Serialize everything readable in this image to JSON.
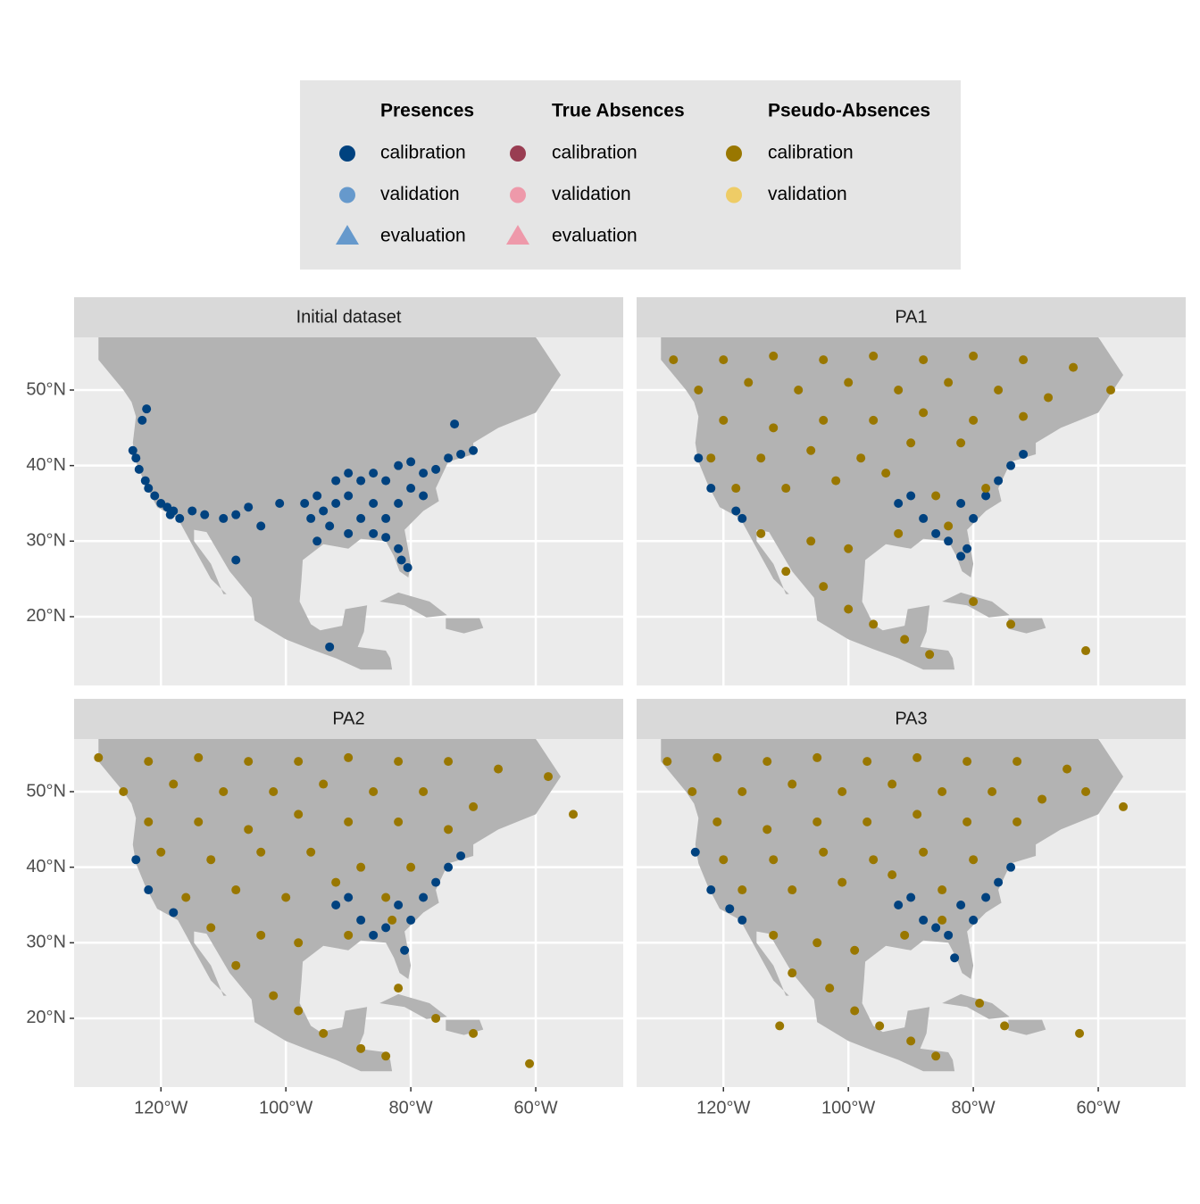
{
  "legend": {
    "groups": [
      {
        "title": "Presences",
        "items": [
          {
            "label": "calibration",
            "color": "#00427f",
            "shape": "circle"
          },
          {
            "label": "validation",
            "color": "#6699cc",
            "shape": "circle"
          },
          {
            "label": "evaluation",
            "color": "#6699cc",
            "shape": "triangle"
          }
        ]
      },
      {
        "title": "True Absences",
        "items": [
          {
            "label": "calibration",
            "color": "#993d52",
            "shape": "circle"
          },
          {
            "label": "validation",
            "color": "#ee99aa",
            "shape": "circle"
          },
          {
            "label": "evaluation",
            "color": "#ee99aa",
            "shape": "triangle"
          }
        ]
      },
      {
        "title": "Pseudo-Absences",
        "items": [
          {
            "label": "calibration",
            "color": "#997700",
            "shape": "circle"
          },
          {
            "label": "validation",
            "color": "#eecc66",
            "shape": "circle"
          }
        ]
      }
    ]
  },
  "axes": {
    "xlim": [
      -133.9,
      -46
    ],
    "ylim": [
      10.9,
      56.97
    ],
    "xticks": [
      {
        "value": -120,
        "label": "120°W"
      },
      {
        "value": -100,
        "label": "100°W"
      },
      {
        "value": -80,
        "label": "80°W"
      },
      {
        "value": -60,
        "label": "60°W"
      }
    ],
    "yticks": [
      {
        "value": 20,
        "label": "20°N"
      },
      {
        "value": 30,
        "label": "30°N"
      },
      {
        "value": 40,
        "label": "40°N"
      },
      {
        "value": 50,
        "label": "50°N"
      }
    ],
    "grid": true
  },
  "chart_data": [
    {
      "type": "scatter",
      "title": "Initial dataset",
      "series": [
        {
          "color": "#00427f",
          "x": [
            -124.5,
            -124,
            -123.5,
            -122.5,
            -122,
            -121,
            -120,
            -119,
            -118,
            -117,
            -122.3,
            -123,
            -118.5,
            -115,
            -113,
            -110,
            -108,
            -106,
            -104,
            -101,
            -97,
            -95,
            -95,
            -93,
            -92,
            -90,
            -88,
            -86,
            -84,
            -82,
            -80,
            -78,
            -76,
            -74,
            -72,
            -70,
            -90,
            -88,
            -86,
            -84,
            -82,
            -81.5,
            -80.5,
            -86,
            -84,
            -82,
            -80,
            -78,
            -90,
            -92,
            -94,
            -96,
            -73,
            -108,
            -93
          ],
          "values": [
            42,
            41,
            39.5,
            38,
            37,
            36,
            35,
            34.5,
            34,
            33,
            47.5,
            46,
            33.5,
            34,
            33.5,
            33,
            33.5,
            34.5,
            32,
            35,
            35,
            36,
            30,
            32,
            35,
            36,
            38,
            35,
            33,
            35,
            37,
            39,
            39.5,
            41,
            41.5,
            42,
            31,
            33,
            31,
            30.5,
            29,
            27.5,
            26.5,
            39,
            38,
            40,
            40.5,
            36,
            39,
            38,
            34,
            33,
            45.5,
            27.5,
            16
          ]
        }
      ]
    },
    {
      "type": "scatter",
      "title": "PA1",
      "series": [
        {
          "color": "#00427f",
          "x": [
            -124,
            -122,
            -118,
            -117,
            -92,
            -90,
            -88,
            -86,
            -84,
            -82,
            -80,
            -78,
            -76,
            -74,
            -72,
            -81,
            -82
          ],
          "values": [
            41,
            37,
            34,
            33,
            35,
            36,
            33,
            31,
            30,
            35,
            33,
            36,
            38,
            40,
            41.5,
            29,
            28
          ]
        },
        {
          "color": "#997700",
          "x": [
            -128,
            -120,
            -112,
            -104,
            -96,
            -88,
            -80,
            -72,
            -64,
            -58,
            -124,
            -116,
            -108,
            -100,
            -92,
            -84,
            -76,
            -68,
            -120,
            -112,
            -104,
            -96,
            -88,
            -80,
            -72,
            -122,
            -114,
            -106,
            -98,
            -90,
            -82,
            -118,
            -110,
            -102,
            -94,
            -86,
            -78,
            -114,
            -106,
            -100,
            -92,
            -84,
            -110,
            -104,
            -100,
            -96,
            -91,
            -87,
            -80,
            -74,
            -62
          ],
          "values": [
            54,
            54,
            54.5,
            54,
            54.5,
            54,
            54.5,
            54,
            53,
            50,
            50,
            51,
            50,
            51,
            50,
            51,
            50,
            49,
            46,
            45,
            46,
            46,
            47,
            46,
            46.5,
            41,
            41,
            42,
            41,
            43,
            43,
            37,
            37,
            38,
            39,
            36,
            37,
            31,
            30,
            29,
            31,
            32,
            26,
            24,
            21,
            19,
            17,
            15,
            22,
            19,
            15.5
          ]
        }
      ]
    },
    {
      "type": "scatter",
      "title": "PA2",
      "series": [
        {
          "color": "#00427f",
          "x": [
            -124,
            -122,
            -118,
            -92,
            -90,
            -88,
            -86,
            -84,
            -82,
            -80,
            -78,
            -76,
            -74,
            -72,
            -81
          ],
          "values": [
            41,
            37,
            34,
            35,
            36,
            33,
            31,
            32,
            35,
            33,
            36,
            38,
            40,
            41.5,
            29
          ]
        },
        {
          "color": "#997700",
          "x": [
            -130,
            -122,
            -114,
            -106,
            -98,
            -90,
            -82,
            -74,
            -66,
            -58,
            -54,
            -126,
            -118,
            -110,
            -102,
            -94,
            -86,
            -78,
            -70,
            -122,
            -114,
            -106,
            -98,
            -90,
            -82,
            -74,
            -120,
            -112,
            -104,
            -96,
            -88,
            -80,
            -116,
            -108,
            -100,
            -92,
            -84,
            -112,
            -104,
            -98,
            -90,
            -83,
            -108,
            -102,
            -98,
            -94,
            -88,
            -84,
            -82,
            -76,
            -70,
            -61
          ],
          "values": [
            54.5,
            54,
            54.5,
            54,
            54,
            54.5,
            54,
            54,
            53,
            52,
            47,
            50,
            51,
            50,
            50,
            51,
            50,
            50,
            48,
            46,
            46,
            45,
            47,
            46,
            46,
            45,
            42,
            41,
            42,
            42,
            40,
            40,
            36,
            37,
            36,
            38,
            36,
            32,
            31,
            30,
            31,
            33,
            27,
            23,
            21,
            18,
            16,
            15,
            24,
            20,
            18,
            14
          ]
        }
      ]
    },
    {
      "type": "scatter",
      "title": "PA3",
      "series": [
        {
          "color": "#00427f",
          "x": [
            -124.5,
            -122,
            -119,
            -117,
            -92,
            -90,
            -88,
            -86,
            -84,
            -82,
            -80,
            -78,
            -76,
            -74,
            -83
          ],
          "values": [
            42,
            37,
            34.5,
            33,
            35,
            36,
            33,
            32,
            31,
            35,
            33,
            36,
            38,
            40,
            28
          ]
        },
        {
          "color": "#997700",
          "x": [
            -129,
            -121,
            -113,
            -105,
            -97,
            -89,
            -81,
            -73,
            -65,
            -56,
            -125,
            -117,
            -109,
            -101,
            -93,
            -85,
            -77,
            -69,
            -62,
            -121,
            -113,
            -105,
            -97,
            -89,
            -81,
            -73,
            -120,
            -112,
            -104,
            -96,
            -88,
            -80,
            -117,
            -109,
            -101,
            -93,
            -85,
            -112,
            -105,
            -99,
            -91,
            -85,
            -109,
            -103,
            -99,
            -95,
            -90,
            -86,
            -79,
            -75,
            -63,
            -111
          ],
          "values": [
            54,
            54.5,
            54,
            54.5,
            54,
            54.5,
            54,
            54,
            53,
            48,
            50,
            50,
            51,
            50,
            51,
            50,
            50,
            49,
            50,
            46,
            45,
            46,
            46,
            47,
            46,
            46,
            41,
            41,
            42,
            41,
            42,
            41,
            37,
            37,
            38,
            39,
            37,
            31,
            30,
            29,
            31,
            33,
            26,
            24,
            21,
            19,
            17,
            15,
            22,
            19,
            18,
            19
          ]
        }
      ]
    }
  ]
}
